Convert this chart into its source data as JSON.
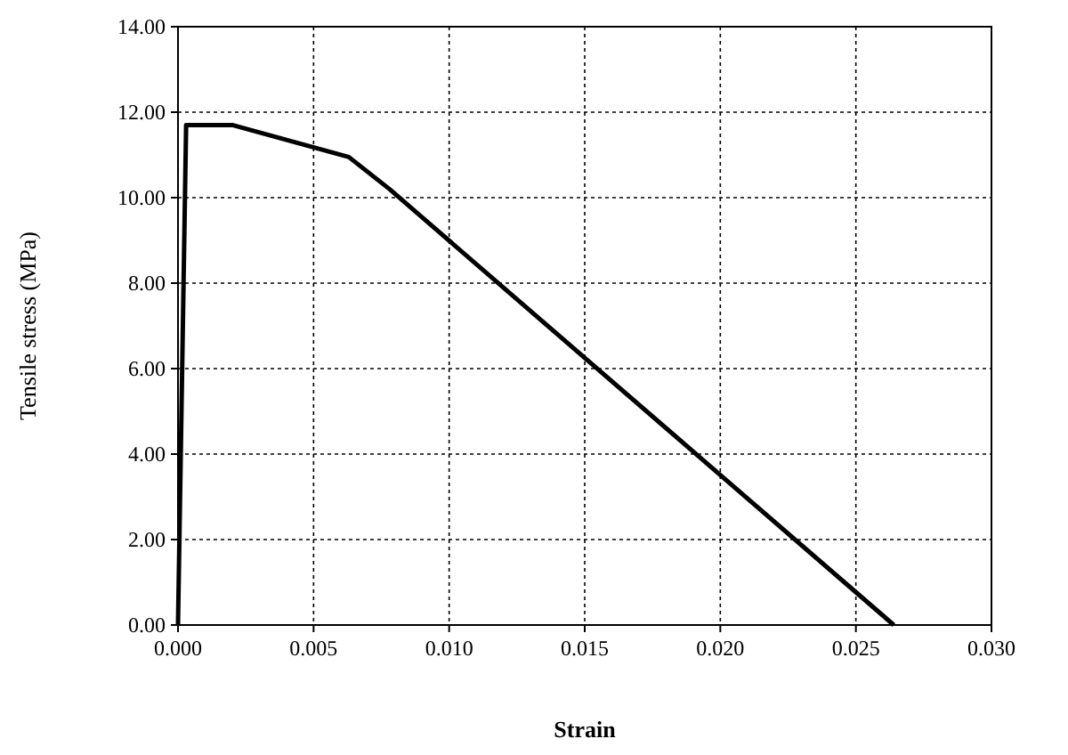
{
  "chart_data": {
    "type": "line",
    "xlabel": "Strain",
    "ylabel": "Tensile stress (MPa)",
    "x": [
      0,
      0.0003,
      0.002,
      0.0063,
      0.0078,
      0.0264
    ],
    "series": [
      {
        "color": "#000000",
        "values": [
          0,
          11.7,
          11.7,
          10.95,
          10.2,
          0
        ]
      }
    ],
    "xlim": [
      0,
      0.03
    ],
    "ylim": [
      0,
      14
    ],
    "xticks": [
      {
        "value": 0,
        "label": "0.000"
      },
      {
        "value": 0.005,
        "label": "0.005"
      },
      {
        "value": 0.01,
        "label": "0.010"
      },
      {
        "value": 0.015,
        "label": "0.015"
      },
      {
        "value": 0.02,
        "label": "0.020"
      },
      {
        "value": 0.025,
        "label": "0.025"
      },
      {
        "value": 0.03,
        "label": "0.030"
      }
    ],
    "yticks": [
      {
        "value": 0,
        "label": "0.00"
      },
      {
        "value": 2,
        "label": "2.00"
      },
      {
        "value": 4,
        "label": "4.00"
      },
      {
        "value": 6,
        "label": "6.00"
      },
      {
        "value": 8,
        "label": "8.00"
      },
      {
        "value": 10,
        "label": "10.00"
      },
      {
        "value": 12,
        "label": "12.00"
      },
      {
        "value": 14,
        "label": "14.00"
      }
    ],
    "grid": true,
    "marker": "none",
    "line_style": "solid"
  }
}
